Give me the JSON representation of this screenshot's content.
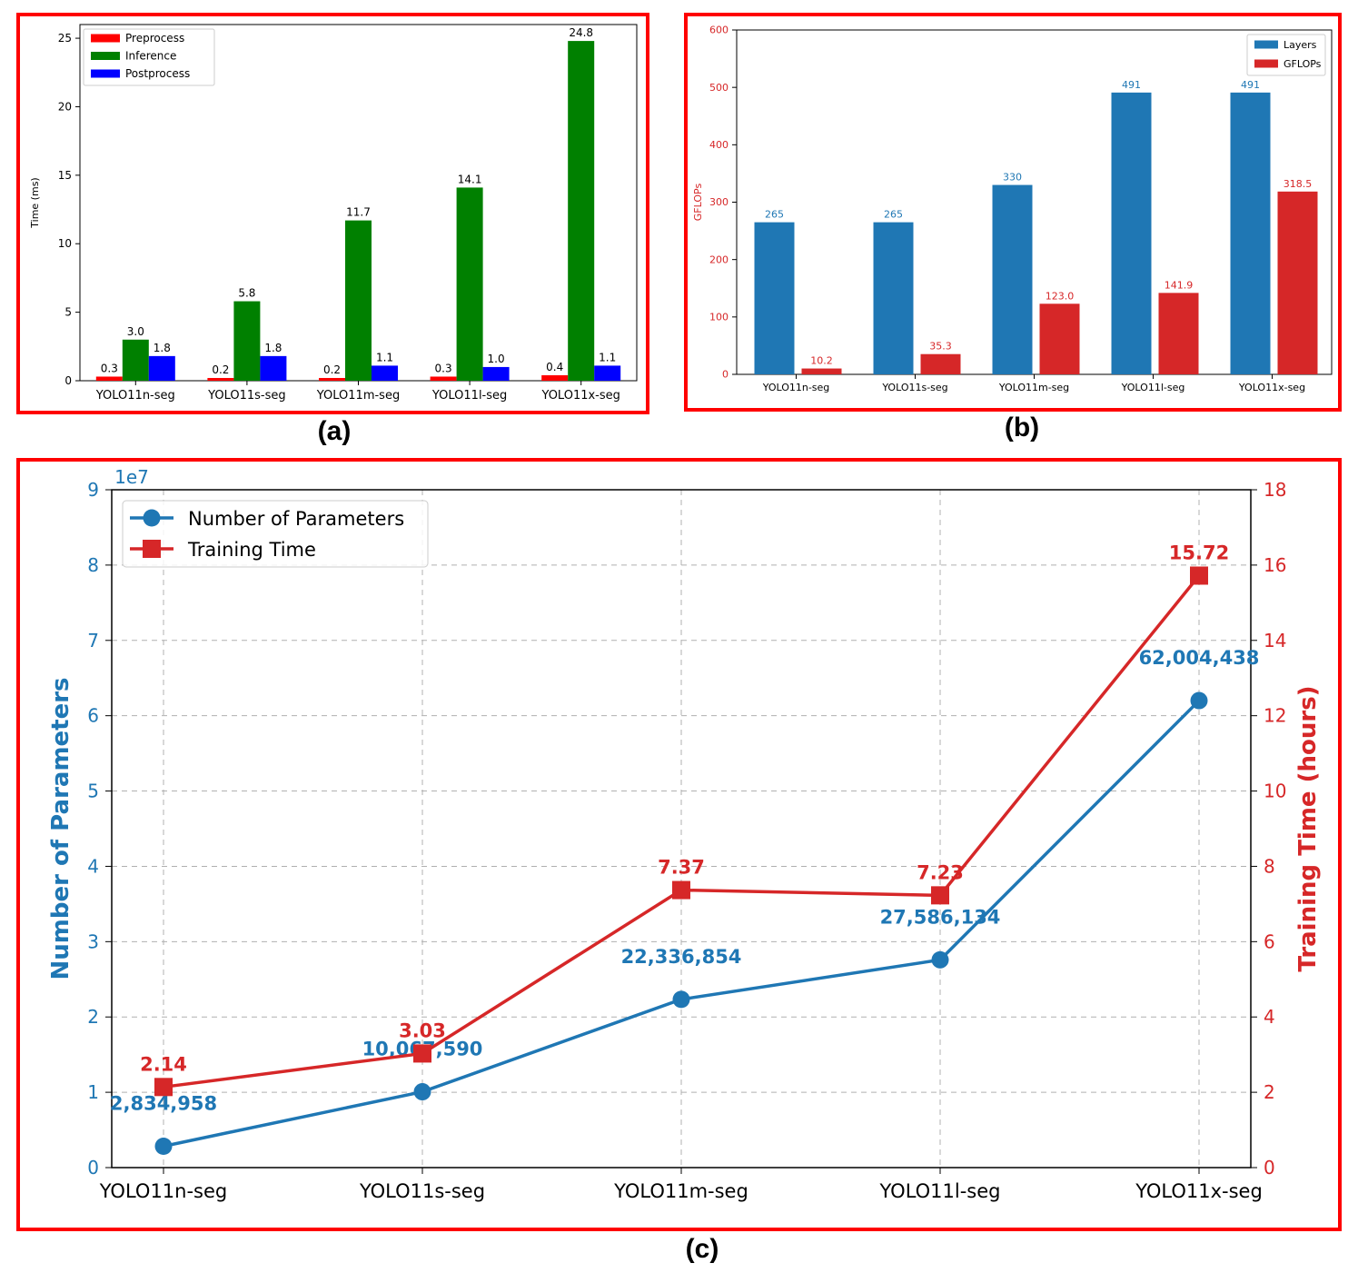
{
  "captions": {
    "a": "(a)",
    "b": "(b)",
    "c": "(c)"
  },
  "chart_data": [
    {
      "id": "a",
      "type": "bar",
      "title": "",
      "xlabel": "",
      "ylabel": "Time (ms)",
      "ylim": [
        0,
        26
      ],
      "yticks": [
        0,
        5,
        10,
        15,
        20,
        25
      ],
      "legend_position": "top-left",
      "categories": [
        "YOLO11n-seg",
        "YOLO11s-seg",
        "YOLO11m-seg",
        "YOLO11l-seg",
        "YOLO11x-seg"
      ],
      "series": [
        {
          "name": "Preprocess",
          "color": "#ff0000",
          "values": [
            0.3,
            0.2,
            0.2,
            0.3,
            0.4
          ],
          "labels": [
            "0.3",
            "0.2",
            "0.2",
            "0.3",
            "0.4"
          ]
        },
        {
          "name": "Inference",
          "color": "#008000",
          "values": [
            3.0,
            5.8,
            11.7,
            14.1,
            24.8
          ],
          "labels": [
            "3.0",
            "5.8",
            "11.7",
            "14.1",
            "24.8"
          ]
        },
        {
          "name": "Postprocess",
          "color": "#0000ff",
          "values": [
            1.8,
            1.8,
            1.1,
            1.0,
            1.1
          ],
          "labels": [
            "1.8",
            "1.8",
            "1.1",
            "1.0",
            "1.1"
          ]
        }
      ]
    },
    {
      "id": "b",
      "type": "bar",
      "title": "",
      "xlabel": "",
      "ylabel": "GFLOPs",
      "ylim": [
        0,
        600
      ],
      "yticks": [
        0,
        100,
        200,
        300,
        400,
        500,
        600
      ],
      "legend_position": "top-right",
      "categories": [
        "YOLO11n-seg",
        "YOLO11s-seg",
        "YOLO11m-seg",
        "YOLO11l-seg",
        "YOLO11x-seg"
      ],
      "series": [
        {
          "name": "Layers",
          "color": "#1f77b4",
          "values": [
            265,
            265,
            330,
            491,
            491
          ],
          "labels": [
            "265",
            "265",
            "330",
            "491",
            "491"
          ]
        },
        {
          "name": "GFLOPs",
          "color": "#d62728",
          "values": [
            10.2,
            35.3,
            123.0,
            141.9,
            318.5
          ],
          "labels": [
            "10.2",
            "35.3",
            "123.0",
            "141.9",
            "318.5"
          ]
        }
      ]
    },
    {
      "id": "c",
      "type": "line",
      "title": "",
      "xlabel": "",
      "categories": [
        "YOLO11n-seg",
        "YOLO11s-seg",
        "YOLO11m-seg",
        "YOLO11l-seg",
        "YOLO11x-seg"
      ],
      "grid": true,
      "legend_position": "top-left",
      "y_left": {
        "label": "Number of Parameters",
        "ticks": [
          0,
          1,
          2,
          3,
          4,
          5,
          6,
          7,
          8,
          9
        ],
        "multiplier": "1e7",
        "ylim": [
          0,
          90000000
        ],
        "color": "#1f77b4"
      },
      "y_right": {
        "label": "Training Time (hours)",
        "ticks": [
          0,
          2,
          4,
          6,
          8,
          10,
          12,
          14,
          16,
          18
        ],
        "ylim": [
          0,
          18
        ],
        "color": "#d62728"
      },
      "series": [
        {
          "name": "Number of Parameters",
          "axis": "left",
          "marker": "circle",
          "color": "#1f77b4",
          "values": [
            2834958,
            10067590,
            22336854,
            27586134,
            62004438
          ],
          "labels": [
            "2,834,958",
            "10,067,590",
            "22,336,854",
            "27,586,134",
            "62,004,438"
          ]
        },
        {
          "name": "Training Time",
          "axis": "right",
          "marker": "square",
          "color": "#d62728",
          "values": [
            2.14,
            3.03,
            7.37,
            7.23,
            15.72
          ],
          "labels": [
            "2.14",
            "3.03",
            "7.37",
            "7.23",
            "15.72"
          ]
        }
      ]
    }
  ]
}
